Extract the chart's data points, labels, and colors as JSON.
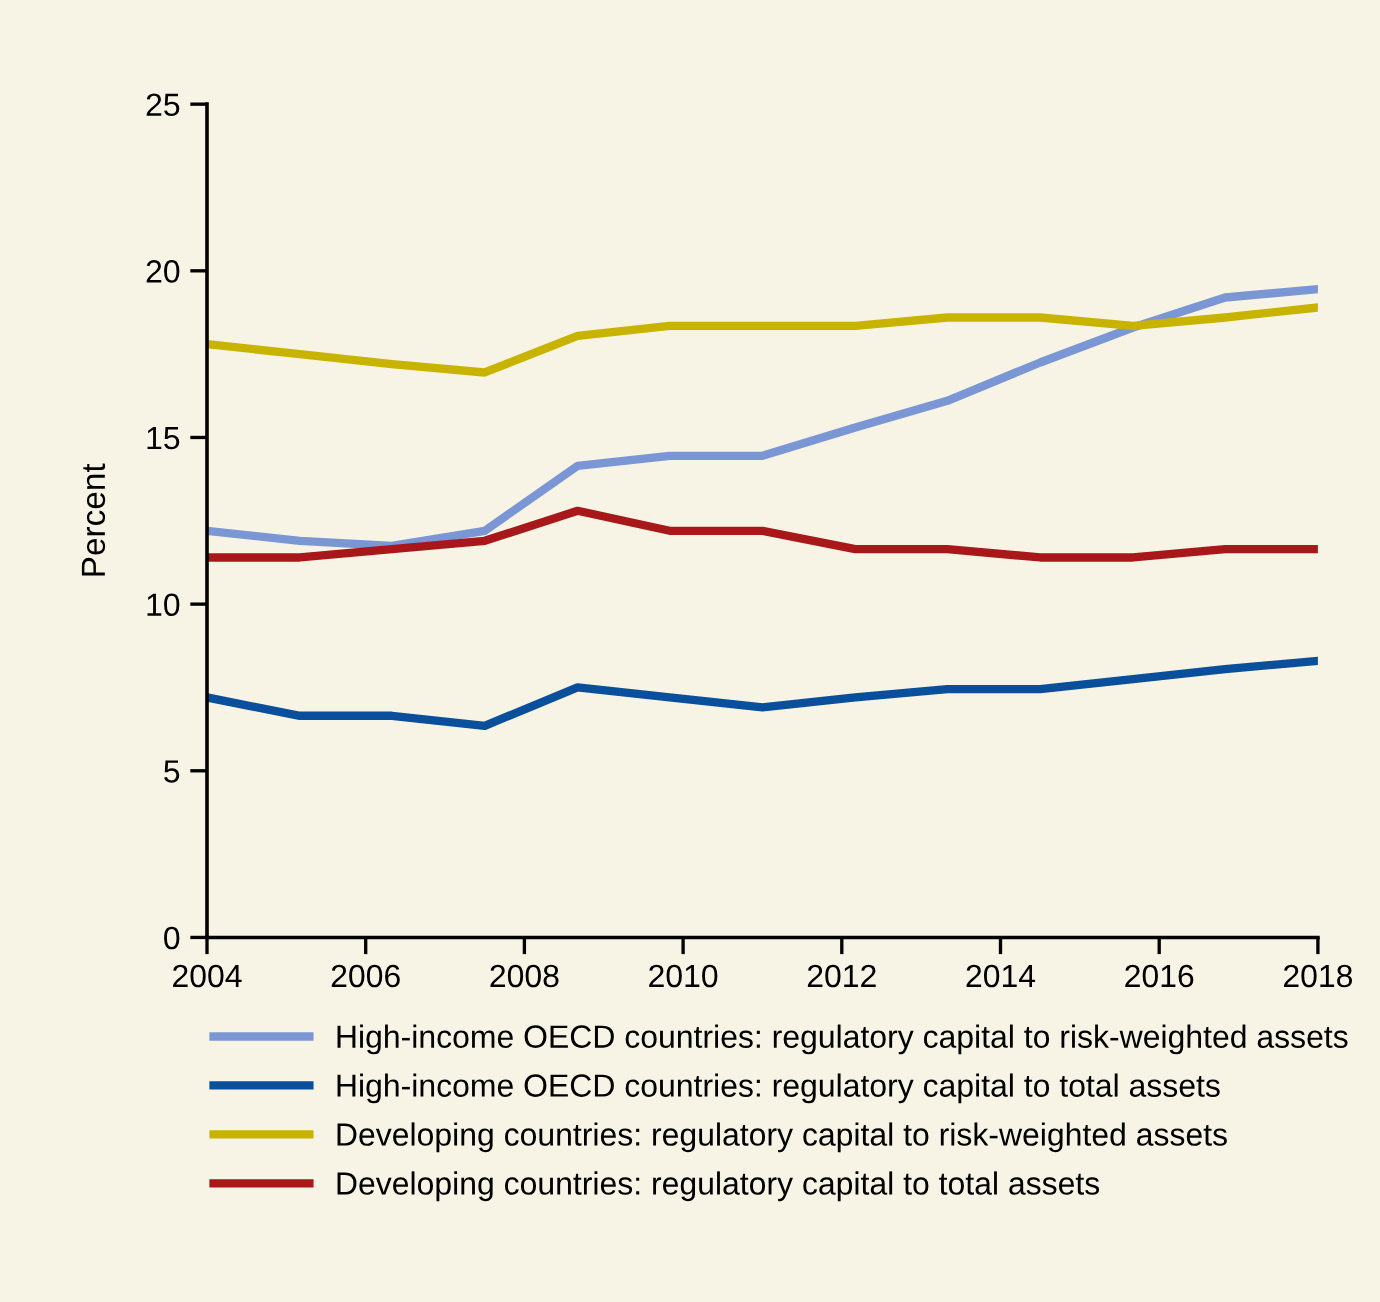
{
  "chart_data": {
    "type": "line",
    "ylabel": "Percent",
    "x": [
      2004,
      2005.17,
      2006.33,
      2007.5,
      2008.67,
      2009.83,
      2011,
      2012.17,
      2013.33,
      2014.5,
      2015.67,
      2016.83,
      2018
    ],
    "xlim": [
      2004,
      2018
    ],
    "xticks": [
      2004,
      2006,
      2008,
      2010,
      2012,
      2014,
      2016,
      2018
    ],
    "ylim": [
      0,
      25
    ],
    "yticks": [
      0,
      5,
      10,
      15,
      20,
      25
    ],
    "grid": false,
    "legend": "bottom",
    "marker": "none",
    "line_style": "solid",
    "series": [
      {
        "name": "High-income OECD countries: regulatory capital to risk-weighted assets",
        "color": "#7b96d4",
        "values": [
          12.2,
          11.9,
          11.75,
          12.2,
          14.15,
          14.45,
          14.45,
          15.3,
          16.1,
          17.25,
          18.3,
          19.2,
          19.45
        ]
      },
      {
        "name": "High-income OECD countries: regulatory capital to total assets",
        "color": "#0a4f9c",
        "values": [
          7.2,
          6.65,
          6.65,
          6.35,
          7.5,
          7.2,
          6.9,
          7.2,
          7.45,
          7.45,
          7.75,
          8.05,
          8.3
        ]
      },
      {
        "name": "Developing countries: regulatory capital to risk-weighted assets",
        "color": "#c8b400",
        "values": [
          17.8,
          17.5,
          17.2,
          16.95,
          18.05,
          18.35,
          18.35,
          18.35,
          18.6,
          18.6,
          18.35,
          18.6,
          18.9
        ]
      },
      {
        "name": "Developing countries: regulatory capital to total assets",
        "color": "#a8181a",
        "values": [
          11.4,
          11.4,
          11.65,
          11.9,
          12.8,
          12.2,
          12.2,
          11.65,
          11.65,
          11.4,
          11.4,
          11.65,
          11.65
        ]
      }
    ]
  }
}
